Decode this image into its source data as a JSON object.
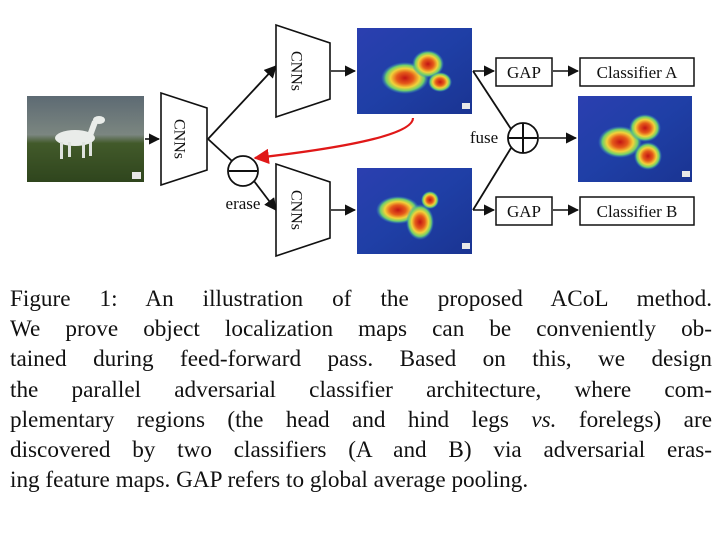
{
  "figure": {
    "cnn_label": "CNNs",
    "erase_label": "erase",
    "fuse_label": "fuse",
    "gap_label": "GAP",
    "classifier_a": "Classifier A",
    "classifier_b": "Classifier B"
  },
  "caption": {
    "prefix": "Figure 1:",
    "line1_rest": " An illustration of the proposed ACoL method.",
    "line2": "We prove object localization maps can be conveniently ob-",
    "line3": "tained during feed-forward pass. Based on this, we design",
    "line4": "the parallel adversarial classifier architecture, where com-",
    "line5_a": "plementary regions (the head and hind legs ",
    "line5_vs": "vs.",
    "line5_b": " forelegs) are",
    "line6": "discovered by two classifiers (A and B) via adversarial eras-",
    "line7": "ing feature maps. GAP refers to global average pooling."
  },
  "colors": {
    "heatmap_bg": "#1f3fa6",
    "heat_hot": "#d0201c",
    "erase_arrow": "#e01818"
  }
}
